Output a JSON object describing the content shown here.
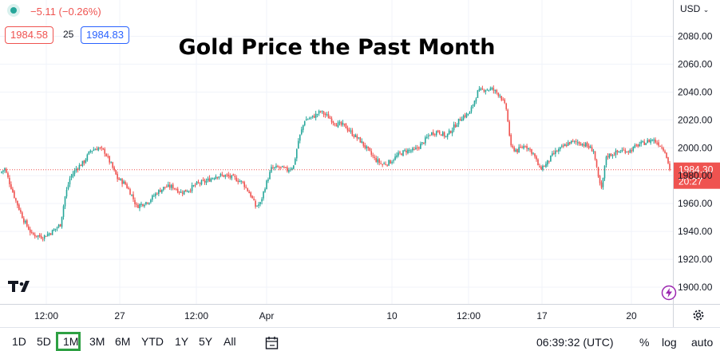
{
  "header": {
    "change_text": "−5.11 (−0.26%)",
    "bid": "1984.58",
    "spread": "25",
    "ask": "1984.83",
    "currency": "USD"
  },
  "chart_data": {
    "type": "candlestick",
    "title": "Gold Price the Past Month",
    "ylim": [
      1888,
      2106
    ],
    "y_ticks": [
      2080,
      2060,
      2040,
      2020,
      2000,
      1980,
      1960,
      1940,
      1920,
      1900
    ],
    "x_tick_labels": [
      "12:00",
      "27",
      "12:00",
      "Apr",
      "10",
      "12:00",
      "17",
      "20"
    ],
    "grid": true,
    "last_price": 1984.3,
    "last_price_label": "1984.30",
    "countdown": "20:27",
    "up_color": "#26a69a",
    "down_color": "#ef5350",
    "price_path": [
      [
        0,
        1982
      ],
      [
        3,
        1985
      ],
      [
        6,
        1975
      ],
      [
        10,
        1962
      ],
      [
        15,
        1948
      ],
      [
        20,
        1938
      ],
      [
        27,
        1936
      ],
      [
        33,
        1940
      ],
      [
        38,
        1945
      ],
      [
        41,
        1965
      ],
      [
        44,
        1978
      ],
      [
        48,
        1985
      ],
      [
        53,
        1990
      ],
      [
        57,
        1998
      ],
      [
        62,
        2000
      ],
      [
        66,
        1997
      ],
      [
        70,
        1988
      ],
      [
        74,
        1978
      ],
      [
        79,
        1974
      ],
      [
        83,
        1966
      ],
      [
        86,
        1958
      ],
      [
        90,
        1960
      ],
      [
        94,
        1962
      ],
      [
        99,
        1968
      ],
      [
        104,
        1972
      ],
      [
        109,
        1972
      ],
      [
        114,
        1968
      ],
      [
        119,
        1970
      ],
      [
        124,
        1974
      ],
      [
        130,
        1976
      ],
      [
        136,
        1980
      ],
      [
        142,
        1980
      ],
      [
        148,
        1978
      ],
      [
        153,
        1975
      ],
      [
        158,
        1966
      ],
      [
        161,
        1958
      ],
      [
        164,
        1960
      ],
      [
        167,
        1972
      ],
      [
        171,
        1985
      ],
      [
        176,
        1986
      ],
      [
        181,
        1984
      ],
      [
        185,
        1987
      ],
      [
        188,
        2005
      ],
      [
        192,
        2020
      ],
      [
        197,
        2022
      ],
      [
        202,
        2026
      ],
      [
        207,
        2022
      ],
      [
        212,
        2017
      ],
      [
        217,
        2016
      ],
      [
        222,
        2010
      ],
      [
        227,
        2005
      ],
      [
        232,
        1998
      ],
      [
        236,
        1992
      ],
      [
        241,
        1988
      ],
      [
        246,
        1990
      ],
      [
        251,
        1995
      ],
      [
        256,
        1998
      ],
      [
        261,
        1998
      ],
      [
        266,
        2003
      ],
      [
        271,
        2010
      ],
      [
        276,
        2012
      ],
      [
        281,
        2008
      ],
      [
        286,
        2015
      ],
      [
        291,
        2022
      ],
      [
        296,
        2025
      ],
      [
        301,
        2040
      ],
      [
        305,
        2042
      ],
      [
        310,
        2042
      ],
      [
        315,
        2038
      ],
      [
        319,
        2028
      ],
      [
        322,
        2000
      ],
      [
        326,
        1998
      ],
      [
        331,
        2002
      ],
      [
        336,
        1996
      ],
      [
        340,
        1985
      ],
      [
        344,
        1988
      ],
      [
        349,
        1996
      ],
      [
        354,
        2000
      ],
      [
        359,
        2004
      ],
      [
        364,
        2004
      ],
      [
        369,
        2002
      ],
      [
        374,
        1998
      ],
      [
        377,
        1978
      ],
      [
        379,
        1970
      ],
      [
        382,
        1994
      ],
      [
        387,
        1996
      ],
      [
        392,
        1998
      ],
      [
        397,
        1998
      ],
      [
        402,
        2002
      ],
      [
        407,
        2004
      ],
      [
        411,
        2006
      ],
      [
        415,
        2003
      ],
      [
        419,
        1998
      ],
      [
        422,
        1984.3
      ]
    ]
  }
}
